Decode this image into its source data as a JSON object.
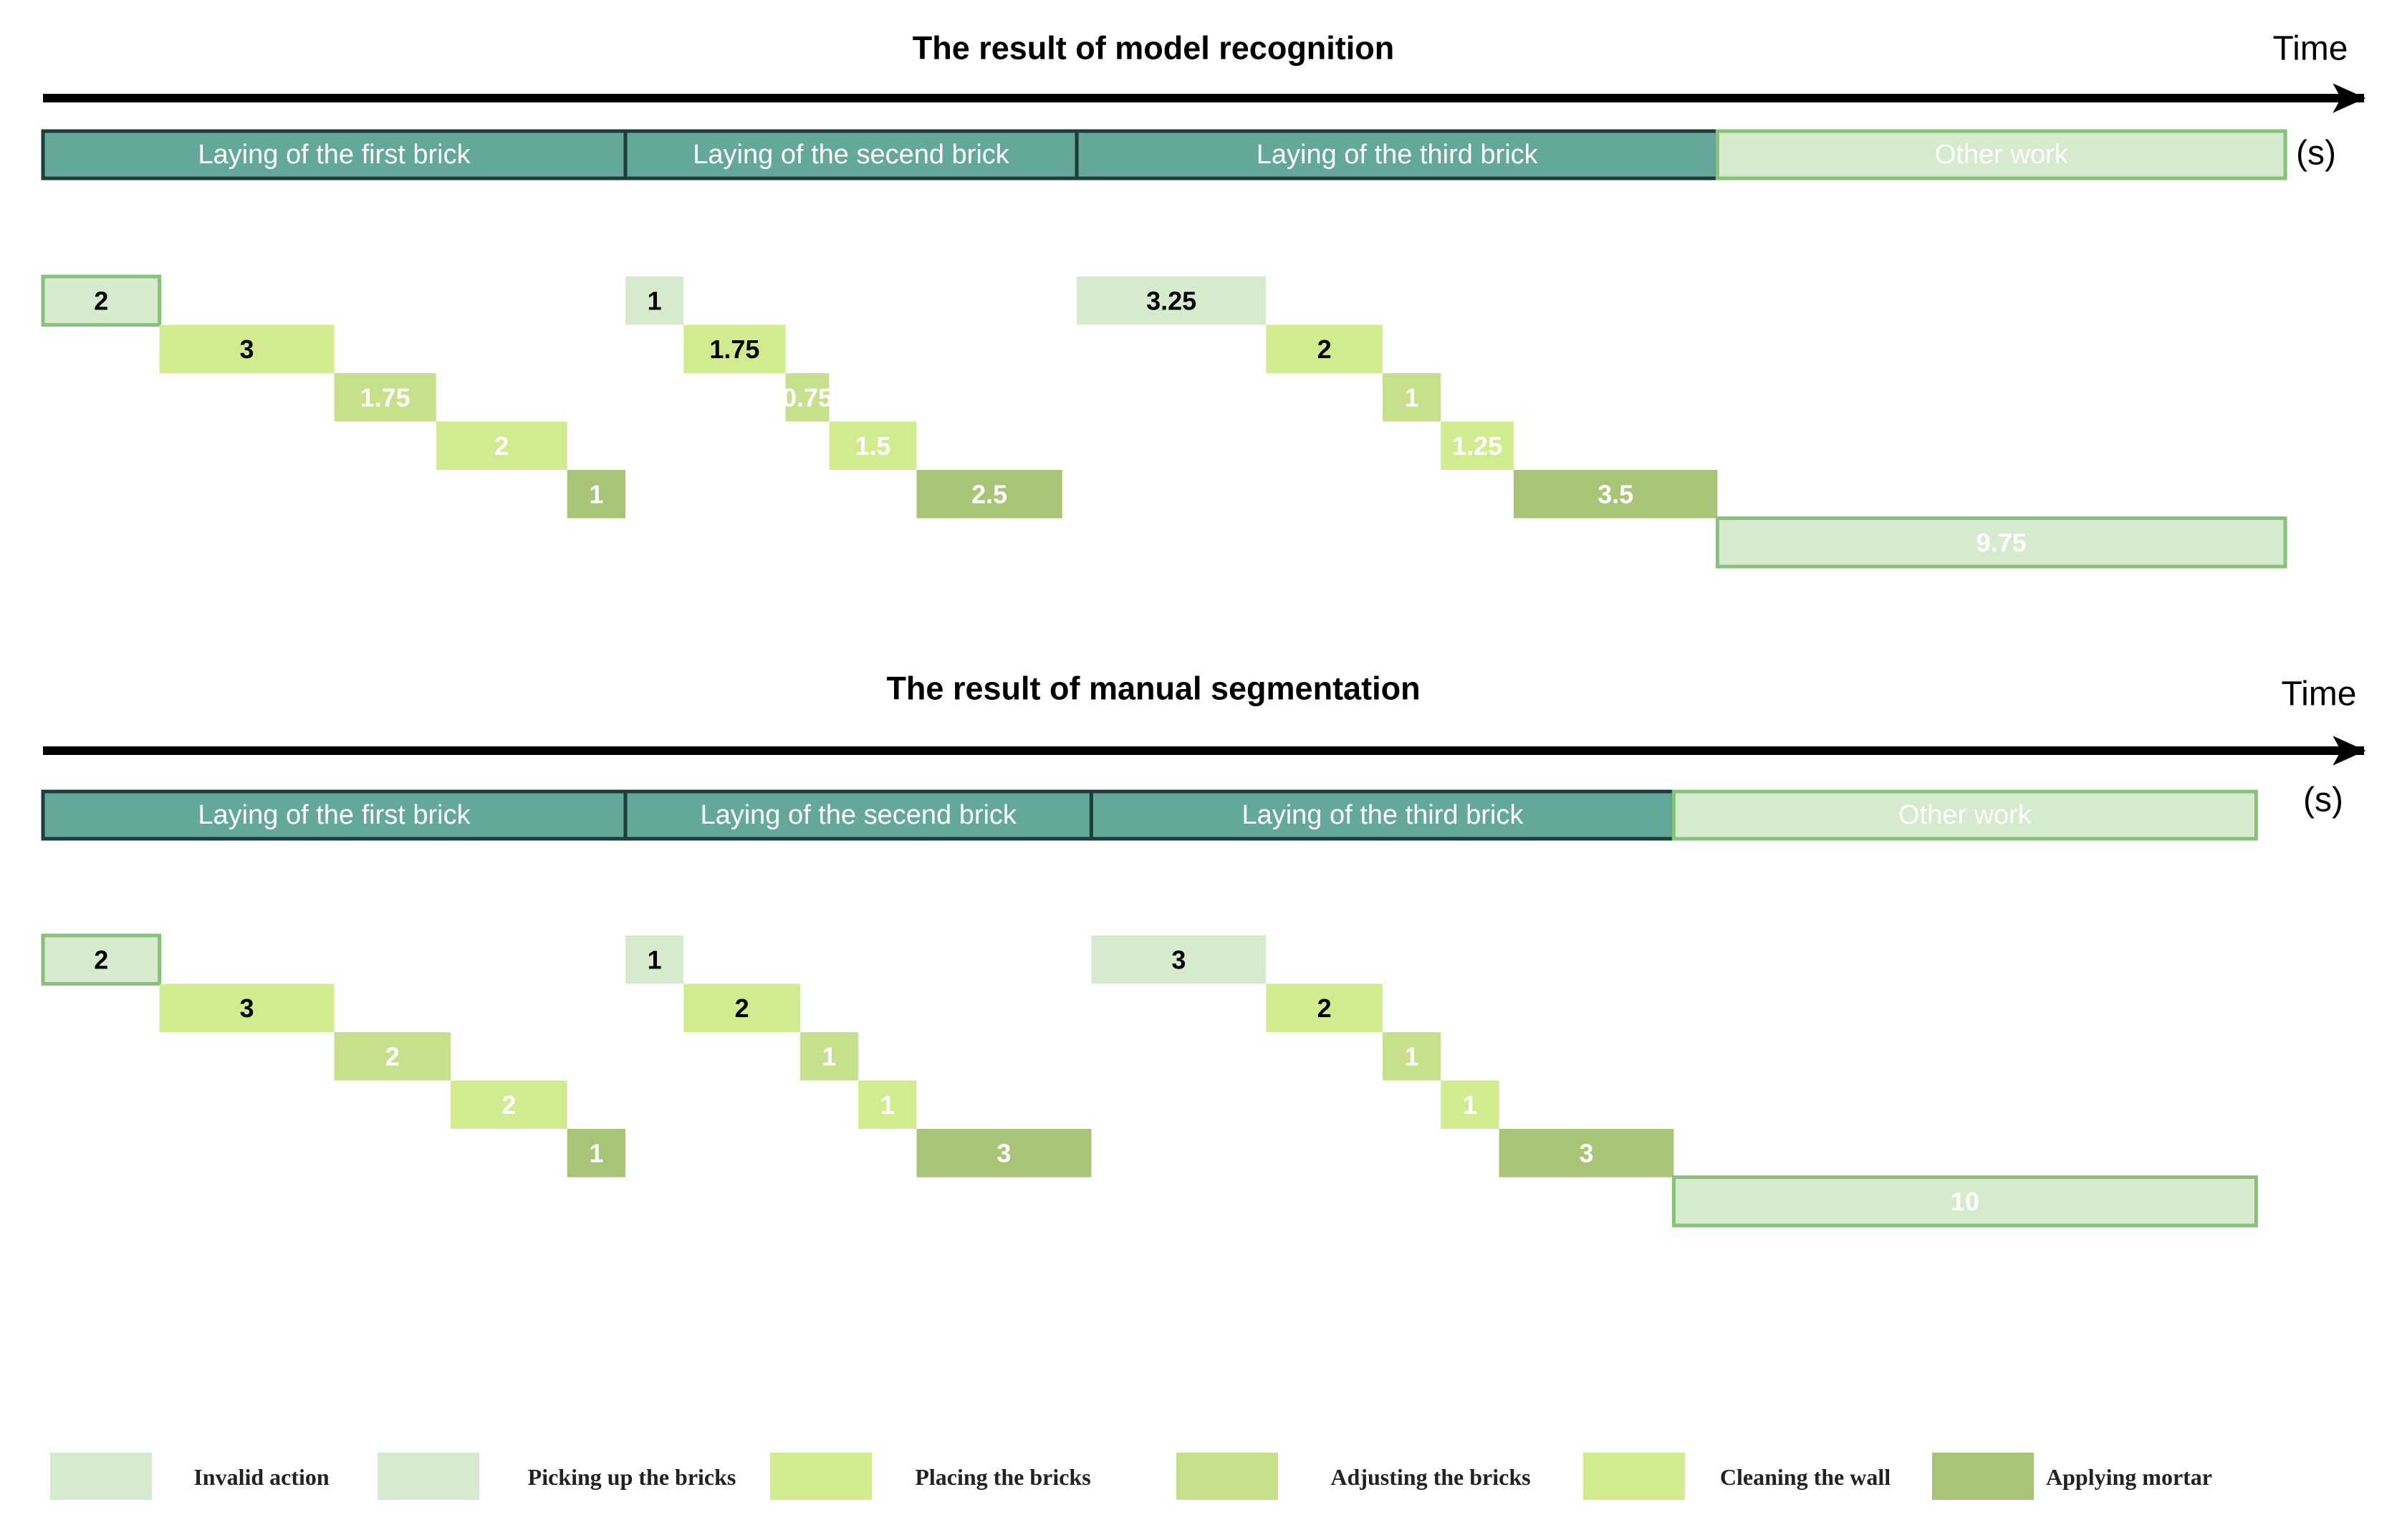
{
  "colors": {
    "phase": "#63a89b",
    "other_work": "#d6eacd",
    "invalid_action": "#d6eacd",
    "picking_up": "#d6eacd",
    "placing": "#d0ec8e",
    "adjusting": "#c6e08c",
    "cleaning": "#d0ec8e",
    "mortar": "#a8c477",
    "border_light": "#86c27a",
    "phase_border": "#1f3d38"
  },
  "axis_label": {
    "time": "Time",
    "unit": "(s)"
  },
  "panels": [
    {
      "id": "model",
      "title": "The result of model recognition",
      "phases": [
        "Laying of the first brick",
        "Laying of the secend brick",
        "Laying of the third brick",
        "Other work"
      ],
      "segments": [
        {
          "value": "2",
          "start": 0,
          "duration": 2,
          "category": "invalid_action"
        },
        {
          "value": "3",
          "start": 2,
          "duration": 3,
          "category": "placing"
        },
        {
          "value": "1.75",
          "start": 5,
          "duration": 1.75,
          "category": "adjusting"
        },
        {
          "value": "2",
          "start": 6.75,
          "duration": 2.25,
          "category": "cleaning"
        },
        {
          "value": "1",
          "start": 9,
          "duration": 1,
          "category": "mortar"
        },
        {
          "value": "1",
          "start": 10,
          "duration": 1,
          "category": "picking_up"
        },
        {
          "value": "1.75",
          "start": 11,
          "duration": 1.75,
          "category": "placing"
        },
        {
          "value": "0.75",
          "start": 12.75,
          "duration": 0.75,
          "category": "adjusting"
        },
        {
          "value": "1.5",
          "start": 13.5,
          "duration": 1.5,
          "category": "cleaning"
        },
        {
          "value": "2.5",
          "start": 15,
          "duration": 2.5,
          "category": "mortar"
        },
        {
          "value": "3.25",
          "start": 17.75,
          "duration": 3.25,
          "category": "picking_up"
        },
        {
          "value": "2",
          "start": 21,
          "duration": 2,
          "category": "placing"
        },
        {
          "value": "1",
          "start": 23,
          "duration": 1,
          "category": "adjusting"
        },
        {
          "value": "1.25",
          "start": 24,
          "duration": 1.25,
          "category": "cleaning"
        },
        {
          "value": "3.5",
          "start": 25.25,
          "duration": 3.5,
          "category": "mortar"
        },
        {
          "value": "9.75",
          "start": 28.75,
          "duration": 9.75,
          "category": "other_work"
        }
      ]
    },
    {
      "id": "manual",
      "title": "The result of manual segmentation",
      "phases": [
        "Laying of the first brick",
        "Laying of the secend brick",
        "Laying of the third brick",
        "Other work"
      ],
      "segments": [
        {
          "value": "2",
          "start": 0,
          "duration": 2,
          "category": "invalid_action"
        },
        {
          "value": "3",
          "start": 2,
          "duration": 3,
          "category": "placing"
        },
        {
          "value": "2",
          "start": 5,
          "duration": 2,
          "category": "adjusting"
        },
        {
          "value": "2",
          "start": 7,
          "duration": 2,
          "category": "cleaning"
        },
        {
          "value": "1",
          "start": 9,
          "duration": 1,
          "category": "mortar"
        },
        {
          "value": "1",
          "start": 10,
          "duration": 1,
          "category": "picking_up"
        },
        {
          "value": "2",
          "start": 11,
          "duration": 2,
          "category": "placing"
        },
        {
          "value": "1",
          "start": 13,
          "duration": 1,
          "category": "adjusting"
        },
        {
          "value": "1",
          "start": 14,
          "duration": 1,
          "category": "cleaning"
        },
        {
          "value": "3",
          "start": 15,
          "duration": 3,
          "category": "mortar"
        },
        {
          "value": "3",
          "start": 18,
          "duration": 3,
          "category": "picking_up"
        },
        {
          "value": "2",
          "start": 21,
          "duration": 2,
          "category": "placing"
        },
        {
          "value": "1",
          "start": 23,
          "duration": 1,
          "category": "adjusting"
        },
        {
          "value": "1",
          "start": 24,
          "duration": 1,
          "category": "cleaning"
        },
        {
          "value": "3",
          "start": 25,
          "duration": 3,
          "category": "mortar"
        },
        {
          "value": "10",
          "start": 28,
          "duration": 10,
          "category": "other_work"
        }
      ]
    }
  ],
  "legend": [
    {
      "key": "invalid_action",
      "label": "Invalid action"
    },
    {
      "key": "picking_up",
      "label": "Picking up the bricks"
    },
    {
      "key": "placing",
      "label": "Placing the bricks"
    },
    {
      "key": "adjusting",
      "label": "Adjusting the bricks"
    },
    {
      "key": "cleaning",
      "label": "Cleaning the wall"
    },
    {
      "key": "mortar",
      "label": "Applying mortar"
    }
  ]
}
